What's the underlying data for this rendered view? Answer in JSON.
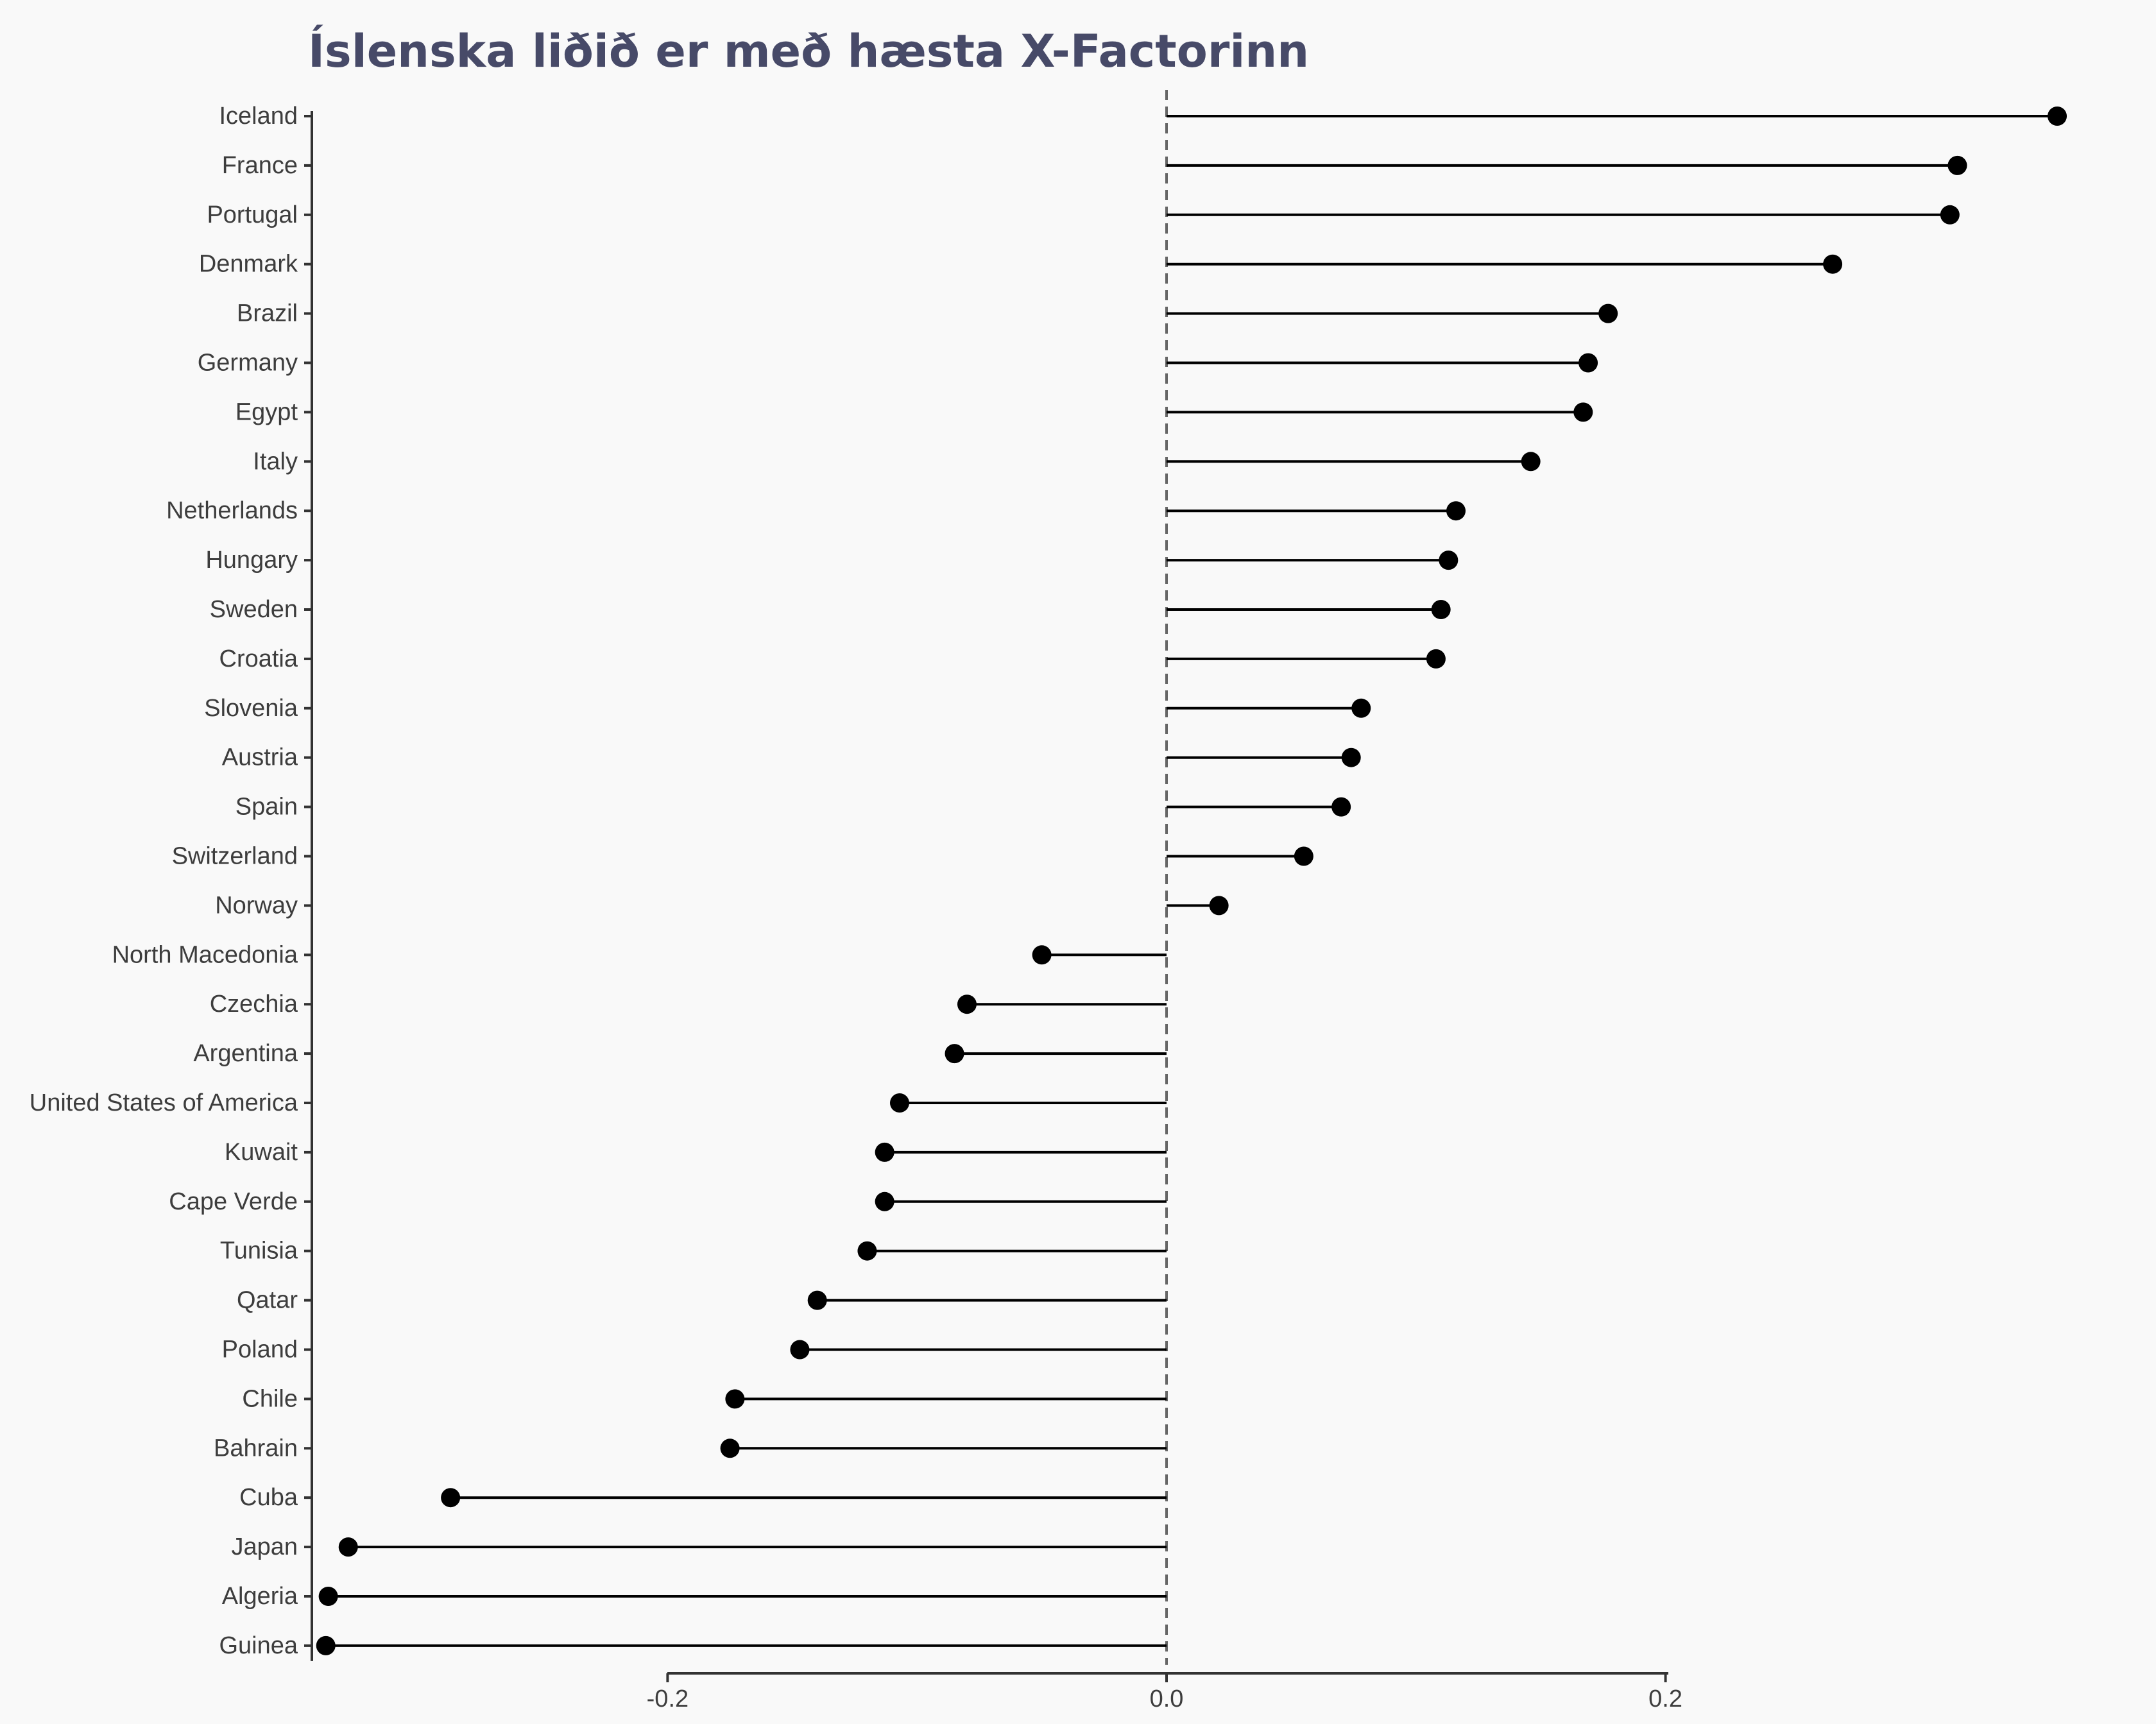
{
  "chart_data": {
    "type": "lollipop",
    "title": "Íslenska liðið er með hæsta X-Factorinn",
    "xlabel": "",
    "ylabel": "",
    "xlim": [
      -0.337,
      0.39
    ],
    "x_ticks": [
      -0.2,
      0.0,
      0.2
    ],
    "x_tick_labels": [
      "-0.2",
      "0.0",
      "0.2"
    ],
    "reference_line": 0,
    "grid": false,
    "categories": [
      "Iceland",
      "France",
      "Portugal",
      "Denmark",
      "Brazil",
      "Germany",
      "Egypt",
      "Italy",
      "Netherlands",
      "Hungary",
      "Sweden",
      "Croatia",
      "Slovenia",
      "Austria",
      "Spain",
      "Switzerland",
      "Norway",
      "North Macedonia",
      "Czechia",
      "Argentina",
      "United States of America",
      "Kuwait",
      "Cape Verde",
      "Tunisia",
      "Qatar",
      "Poland",
      "Chile",
      "Bahrain",
      "Cuba",
      "Japan",
      "Algeria",
      "Guinea"
    ],
    "values": [
      0.357,
      0.317,
      0.314,
      0.267,
      0.177,
      0.169,
      0.167,
      0.146,
      0.116,
      0.113,
      0.11,
      0.108,
      0.078,
      0.074,
      0.07,
      0.055,
      0.021,
      -0.05,
      -0.08,
      -0.085,
      -0.107,
      -0.113,
      -0.113,
      -0.12,
      -0.14,
      -0.147,
      -0.173,
      -0.175,
      -0.287,
      -0.328,
      -0.336,
      -0.337
    ]
  },
  "colors": {
    "background": "#f9f9f9",
    "title": "#474a68",
    "marks": "#000000",
    "axis": "#333333",
    "reference_line": "#666666",
    "tick_text": "#3d3d3d"
  }
}
